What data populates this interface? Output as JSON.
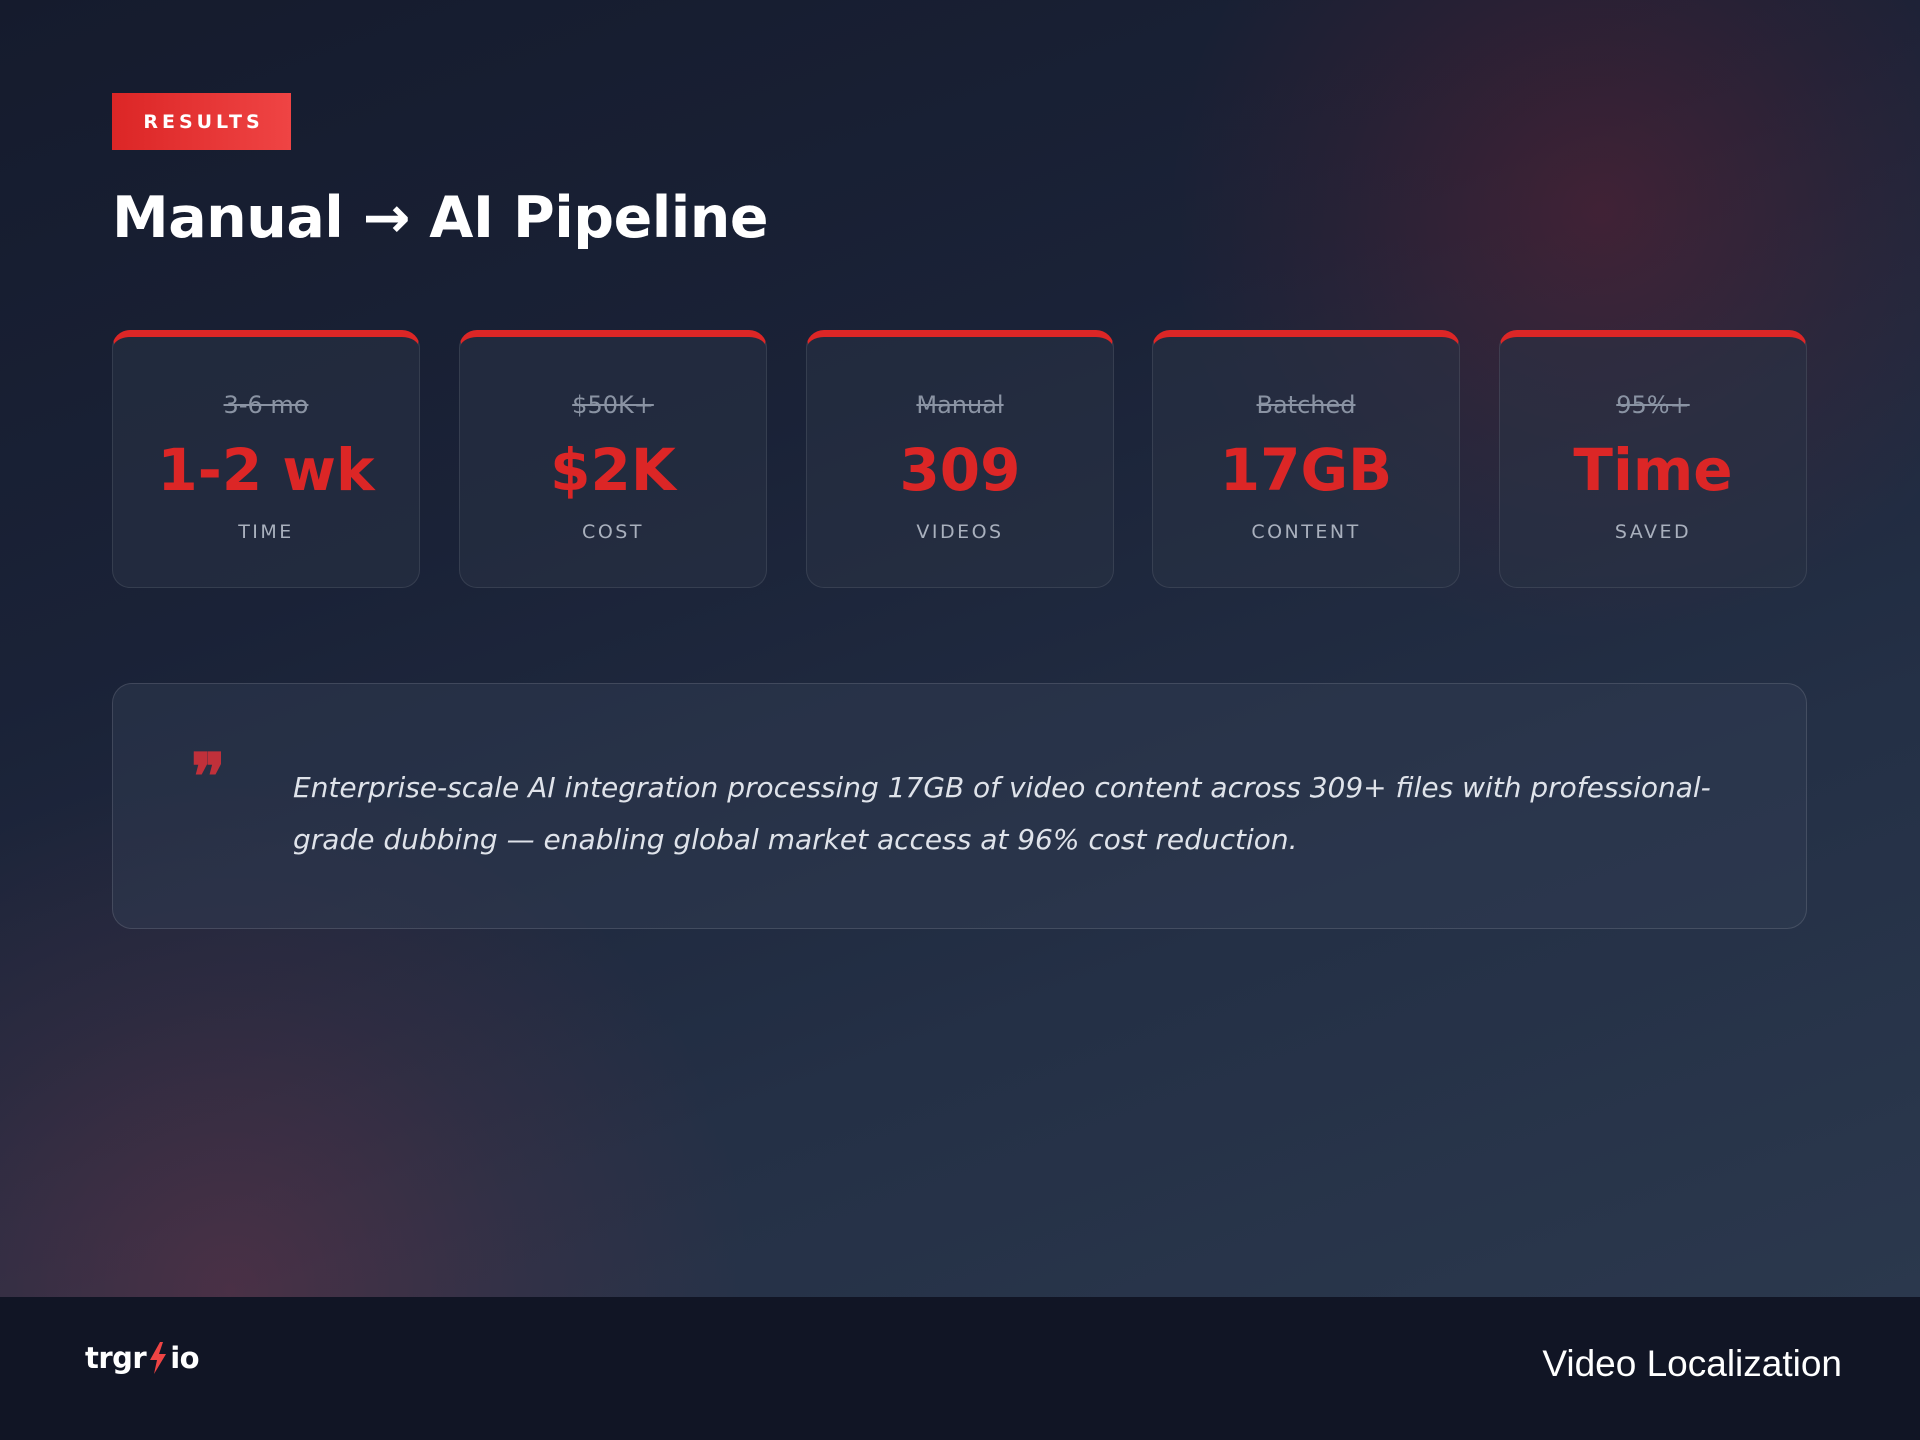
{
  "badge": "RESULTS",
  "title": "Manual → AI Pipeline",
  "metrics": [
    {
      "old": "3-6 mo",
      "value": "1-2 wk",
      "label": "TIME"
    },
    {
      "old": "$50K+",
      "value": "$2K",
      "label": "COST"
    },
    {
      "old": "Manual",
      "value": "309",
      "label": "VIDEOS"
    },
    {
      "old": "Batched",
      "value": "17GB",
      "label": "CONTENT"
    },
    {
      "old": "95%+",
      "value": "Time",
      "label": "SAVED"
    }
  ],
  "quote": {
    "mark": "❞",
    "text": "Enterprise-scale AI integration processing 17GB of video content across 309+ files with professional-grade dubbing — enabling global market access at 96% cost reduction."
  },
  "footer": {
    "logo_left": "trgr",
    "logo_right": "io",
    "logo_icon": "lightning-bolt-icon",
    "right_text": "Video Localization"
  },
  "colors": {
    "accent": "#dc2626",
    "background": "#1a2237",
    "footer": "#111525"
  }
}
